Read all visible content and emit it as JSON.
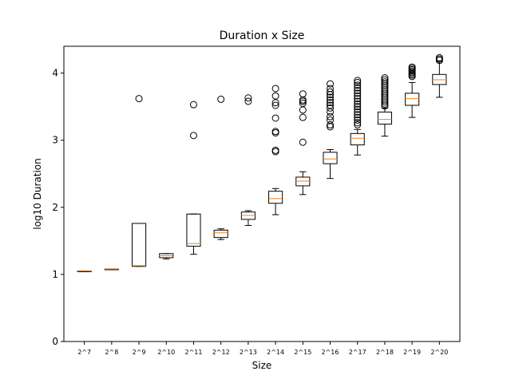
{
  "chart_data": {
    "type": "box",
    "title": "Duration x Size",
    "xlabel": "Size",
    "ylabel": "log10 Duration",
    "ylim": [
      0,
      4.4
    ],
    "yticks": [
      "0",
      "1",
      "2",
      "3",
      "4"
    ],
    "grid": false,
    "legend": "none",
    "colors": {
      "box": "#000000",
      "median": "#ff7f0e",
      "flier": "#000000"
    },
    "categories": [
      "2^7",
      "2^8",
      "2^9",
      "2^10",
      "2^11",
      "2^12",
      "2^13",
      "2^14",
      "2^15",
      "2^16",
      "2^17",
      "2^18",
      "2^19",
      "2^20"
    ],
    "boxes": [
      {
        "whislo": 1.04,
        "q1": 1.04,
        "med": 1.05,
        "q3": 1.05,
        "whishi": 1.05,
        "fliers": []
      },
      {
        "whislo": 1.07,
        "q1": 1.07,
        "med": 1.08,
        "q3": 1.08,
        "whishi": 1.08,
        "fliers": []
      },
      {
        "whislo": 1.12,
        "q1": 1.12,
        "med": 1.13,
        "q3": 1.76,
        "whishi": 1.76,
        "fliers": [
          3.62
        ]
      },
      {
        "whislo": 1.23,
        "q1": 1.25,
        "med": 1.28,
        "q3": 1.31,
        "whishi": 1.31,
        "fliers": []
      },
      {
        "whislo": 1.3,
        "q1": 1.42,
        "med": 1.46,
        "q3": 1.9,
        "whishi": 1.9,
        "fliers": [
          3.07,
          3.53
        ]
      },
      {
        "whislo": 1.52,
        "q1": 1.55,
        "med": 1.62,
        "q3": 1.66,
        "whishi": 1.68,
        "fliers": [
          3.61
        ]
      },
      {
        "whislo": 1.73,
        "q1": 1.82,
        "med": 1.88,
        "q3": 1.93,
        "whishi": 1.95,
        "fliers": [
          3.58,
          3.63
        ]
      },
      {
        "whislo": 1.89,
        "q1": 2.06,
        "med": 2.13,
        "q3": 2.24,
        "whishi": 2.28,
        "fliers": [
          2.83,
          2.85,
          3.11,
          3.13,
          3.33,
          3.52,
          3.56,
          3.66,
          3.77
        ]
      },
      {
        "whislo": 2.19,
        "q1": 2.32,
        "med": 2.39,
        "q3": 2.45,
        "whishi": 2.53,
        "fliers": [
          2.97,
          3.34,
          3.45,
          3.55,
          3.58,
          3.6,
          3.69
        ]
      },
      {
        "whislo": 2.43,
        "q1": 2.65,
        "med": 2.72,
        "q3": 2.82,
        "whishi": 2.86,
        "fliers": [
          3.2,
          3.23,
          3.3,
          3.35,
          3.42,
          3.48,
          3.52,
          3.56,
          3.6,
          3.64,
          3.68,
          3.72,
          3.77,
          3.84
        ]
      },
      {
        "whislo": 2.78,
        "q1": 2.93,
        "med": 3.03,
        "q3": 3.1,
        "whishi": 3.16,
        "fliers": [
          3.23,
          3.26,
          3.3,
          3.34,
          3.38,
          3.42,
          3.46,
          3.5,
          3.54,
          3.58,
          3.62,
          3.66,
          3.7,
          3.74,
          3.78,
          3.82,
          3.86,
          3.89
        ]
      },
      {
        "whislo": 3.06,
        "q1": 3.24,
        "med": 3.31,
        "q3": 3.42,
        "whishi": 3.48,
        "fliers": [
          3.51,
          3.54,
          3.57,
          3.6,
          3.63,
          3.66,
          3.69,
          3.72,
          3.75,
          3.78,
          3.81,
          3.84,
          3.87,
          3.9,
          3.93
        ]
      },
      {
        "whislo": 3.34,
        "q1": 3.52,
        "med": 3.62,
        "q3": 3.7,
        "whishi": 3.86,
        "fliers": [
          3.95,
          3.97,
          3.99,
          4.01,
          4.03,
          4.05,
          4.07,
          4.09
        ]
      },
      {
        "whislo": 3.64,
        "q1": 3.83,
        "med": 3.9,
        "q3": 3.98,
        "whishi": 4.17,
        "fliers": [
          4.19,
          4.21,
          4.23
        ]
      }
    ]
  }
}
